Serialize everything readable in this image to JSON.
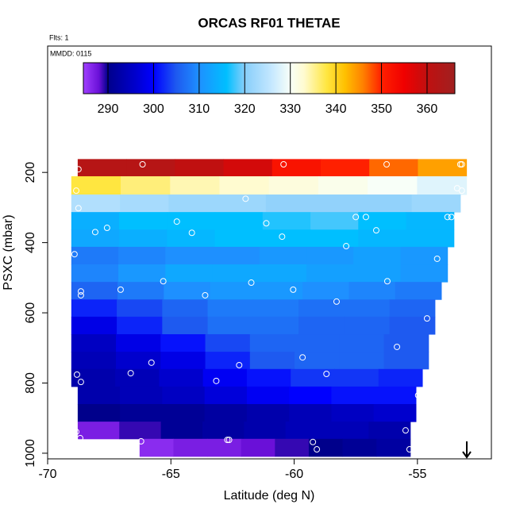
{
  "chart_data": {
    "type": "heatmap",
    "title": "ORCAS RF01 THETAE",
    "flights_note": "Flts: 1",
    "date_note": "MMDD: 0115",
    "x_label": "Latitude (deg N)",
    "y_label": "PSXC (mbar)",
    "xlim": [
      -70,
      -52
    ],
    "xticks": [
      -70,
      -65,
      -60,
      -55
    ],
    "ylim": [
      1016,
      -160
    ],
    "yticks": [
      200,
      400,
      600,
      800,
      1000
    ],
    "colorbar_lim": [
      284.6,
      366.1
    ],
    "colorbar_ticks": [
      290,
      300,
      310,
      320,
      330,
      340,
      350,
      360
    ],
    "colorscale": [
      {
        "value": 284.6,
        "color": "#a040ff"
      },
      {
        "value": 288,
        "color": "#6a10d8"
      },
      {
        "value": 290,
        "color": "#00008b"
      },
      {
        "value": 296,
        "color": "#0000cd"
      },
      {
        "value": 300,
        "color": "#0000ff"
      },
      {
        "value": 305,
        "color": "#1e5af0"
      },
      {
        "value": 310,
        "color": "#1e90ff"
      },
      {
        "value": 316,
        "color": "#00bfff"
      },
      {
        "value": 320,
        "color": "#87cefa"
      },
      {
        "value": 326,
        "color": "#c6e8ff"
      },
      {
        "value": 330,
        "color": "#f8fff8"
      },
      {
        "value": 333,
        "color": "#fffbd0"
      },
      {
        "value": 338,
        "color": "#ffe640"
      },
      {
        "value": 342,
        "color": "#ffc000"
      },
      {
        "value": 346,
        "color": "#ff8000"
      },
      {
        "value": 350,
        "color": "#ff2000"
      },
      {
        "value": 355,
        "color": "#f00000"
      },
      {
        "value": 360,
        "color": "#c01010"
      },
      {
        "value": 366.1,
        "color": "#a02020"
      }
    ],
    "rows": [
      {
        "p": [
          162,
          211
        ],
        "lat": [
          -68.78,
          -53.01
        ],
        "values": [
          362,
          362,
          360,
          358,
          352,
          350,
          347,
          344
        ]
      },
      {
        "p": [
          211,
          263
        ],
        "lat": [
          -69.04,
          -53.01
        ],
        "values": [
          338,
          336,
          334,
          333,
          332,
          331,
          330,
          328
        ]
      },
      {
        "p": [
          263,
          313
        ],
        "lat": [
          -69.04,
          -53.26
        ],
        "values": [
          324,
          323,
          322,
          322,
          321,
          321,
          321,
          322
        ]
      },
      {
        "p": [
          313,
          363
        ],
        "lat": [
          -69.04,
          -53.52
        ],
        "values": [
          314,
          316,
          316,
          316,
          317,
          318,
          316,
          315
        ]
      },
      {
        "p": [
          363,
          412
        ],
        "lat": [
          -69.04,
          -53.52
        ],
        "values": [
          313,
          314,
          315,
          316,
          316,
          316,
          315,
          315
        ]
      },
      {
        "p": [
          412,
          462
        ],
        "lat": [
          -69.04,
          -53.78
        ],
        "values": [
          308,
          309,
          310,
          310,
          311,
          311,
          312,
          311
        ]
      },
      {
        "p": [
          462,
          512
        ],
        "lat": [
          -69.04,
          -53.78
        ],
        "values": [
          309,
          311,
          313,
          313,
          313,
          312,
          312,
          311
        ]
      },
      {
        "p": [
          512,
          562
        ],
        "lat": [
          -69.04,
          -54.03
        ],
        "values": [
          306,
          308,
          310,
          311,
          311,
          310,
          309,
          308
        ]
      },
      {
        "p": [
          562,
          611
        ],
        "lat": [
          -69.04,
          -54.29
        ],
        "values": [
          302,
          304,
          306,
          308,
          308,
          307,
          307,
          306
        ]
      },
      {
        "p": [
          611,
          661
        ],
        "lat": [
          -69.04,
          -54.29
        ],
        "values": [
          298,
          302,
          305,
          307,
          307,
          306,
          306,
          305
        ]
      },
      {
        "p": [
          661,
          711
        ],
        "lat": [
          -69.04,
          -54.55
        ],
        "values": [
          295,
          298,
          301,
          304,
          306,
          306,
          306,
          305
        ]
      },
      {
        "p": [
          711,
          760
        ],
        "lat": [
          -69.04,
          -54.55
        ],
        "values": [
          294,
          296,
          298,
          302,
          305,
          306,
          306,
          305
        ]
      },
      {
        "p": [
          760,
          810
        ],
        "lat": [
          -69.04,
          -54.8
        ],
        "values": [
          293,
          294,
          296,
          299,
          301,
          303,
          303,
          302
        ]
      },
      {
        "p": [
          810,
          860
        ],
        "lat": [
          -68.78,
          -55.06
        ],
        "values": [
          293,
          294,
          295,
          297,
          299,
          300,
          301,
          301
        ]
      },
      {
        "p": [
          860,
          910
        ],
        "lat": [
          -68.78,
          -55.06
        ],
        "values": [
          290,
          291,
          291,
          292,
          293,
          294,
          295,
          296
        ]
      },
      {
        "p": [
          910,
          959
        ],
        "lat": [
          -68.78,
          -55.29
        ],
        "values": [
          287,
          289,
          291,
          292,
          293,
          294,
          294,
          293
        ]
      },
      {
        "p": [
          959,
          1009
        ],
        "lat": [
          -66.27,
          -55.29
        ],
        "values": [
          286,
          287,
          287,
          288,
          289,
          290,
          291,
          292
        ]
      }
    ],
    "points": {
      "lat": [
        -68.75,
        -66.15,
        -60.43,
        -56.25,
        -53.26,
        -53.2,
        -68.84,
        -61.97,
        -53.39,
        -53.2,
        -68.75,
        -57.5,
        -57.09,
        -53.78,
        -53.62,
        -64.76,
        -61.13,
        -68.07,
        -67.59,
        -64.15,
        -56.67,
        -60.49,
        -57.89,
        -68.91,
        -54.2,
        -65.31,
        -61.74,
        -56.22,
        -68.65,
        -68.65,
        -67.04,
        -63.61,
        -60.04,
        -58.28,
        -54.61,
        -59.66,
        -55.83,
        -65.79,
        -66.63,
        -62.23,
        -68.81,
        -68.65,
        -63.16,
        -58.69,
        -54.97,
        -68.84,
        -68.68,
        -55.48,
        -66.21,
        -62.71,
        -62.64,
        -59.24,
        -59.08,
        -55.32
      ],
      "p": [
        191,
        177,
        177,
        177,
        177,
        177,
        252,
        275,
        245,
        252,
        302,
        327,
        327,
        327,
        327,
        340,
        345,
        370,
        358,
        372,
        365,
        383,
        410,
        433,
        446,
        510,
        514,
        510,
        539,
        550,
        534,
        550,
        534,
        568,
        616,
        727,
        697,
        742,
        772,
        749,
        776,
        797,
        794,
        774,
        835,
        939,
        957,
        935,
        966,
        962,
        962,
        968,
        989,
        989
      ]
    }
  }
}
